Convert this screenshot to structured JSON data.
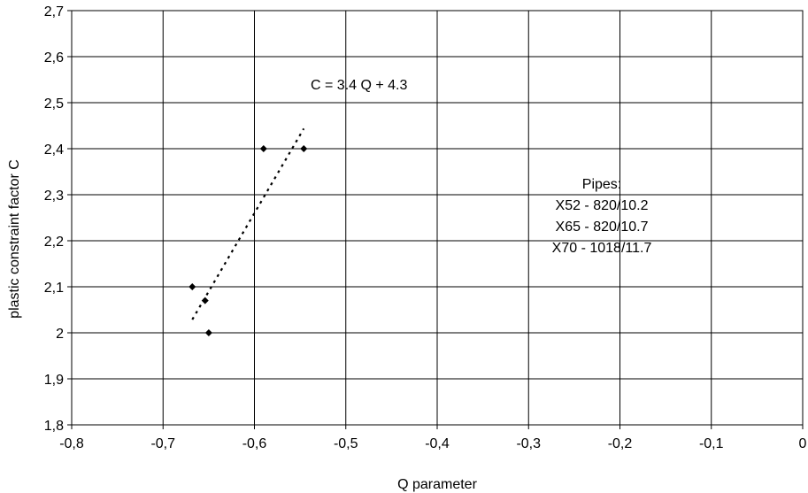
{
  "chart_data": {
    "type": "scatter",
    "title": "",
    "xlabel": "Q parameter",
    "ylabel": "plastic constraint factor C",
    "xlim": [
      -0.8,
      0
    ],
    "ylim": [
      1.8,
      2.7
    ],
    "x_ticks": [
      -0.8,
      -0.7,
      -0.6,
      -0.5,
      -0.4,
      -0.3,
      -0.2,
      -0.1,
      0
    ],
    "x_tick_labels": [
      "-0,8",
      "-0,7",
      "-0,6",
      "-0,5",
      "-0,4",
      "-0,3",
      "-0,2",
      "-0,1",
      "0"
    ],
    "y_ticks": [
      1.8,
      1.9,
      2.0,
      2.1,
      2.2,
      2.3,
      2.4,
      2.5,
      2.6,
      2.7
    ],
    "y_tick_labels": [
      "1,8",
      "1,9",
      "2",
      "2,1",
      "2,2",
      "2,3",
      "2,4",
      "2,5",
      "2,6",
      "2,7"
    ],
    "grid": true,
    "series": [
      {
        "values": [
          {
            "x": -0.668,
            "y": 2.1
          },
          {
            "x": -0.654,
            "y": 2.07
          },
          {
            "x": -0.65,
            "y": 2.0
          },
          {
            "x": -0.59,
            "y": 2.4
          },
          {
            "x": -0.546,
            "y": 2.4
          }
        ],
        "color": "#000000",
        "marker": "diamond"
      }
    ],
    "trendline": {
      "slope": 3.4,
      "intercept": 4.3,
      "x_range": [
        -0.668,
        -0.546
      ],
      "style": "dotted",
      "label": "C = 3.4 Q + 4.3"
    },
    "annotations": [
      {
        "lines": [
          "Pipes:",
          "X52 - 820/10.2",
          "X65 - 820/10.7",
          "X70 - 1018/11.7"
        ]
      }
    ]
  }
}
